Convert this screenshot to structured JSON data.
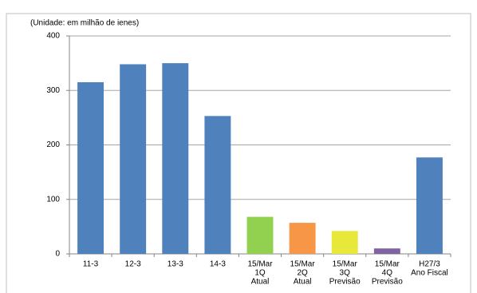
{
  "chart_data": {
    "type": "bar",
    "y_label": "(Unidade: em milhão de ienes)",
    "categories": [
      [
        "11-3"
      ],
      [
        "12-3"
      ],
      [
        "13-3"
      ],
      [
        "14-3"
      ],
      [
        "15/Mar",
        "1Q",
        "Atual"
      ],
      [
        "15/Mar",
        "2Q",
        "Atual"
      ],
      [
        "15/Mar",
        "3Q",
        "Previsão"
      ],
      [
        "15/Mar",
        "4Q",
        "Previsão"
      ],
      [
        "H27/3",
        "Ano Fiscal"
      ]
    ],
    "values": [
      315,
      348,
      350,
      253,
      68,
      57,
      42,
      10,
      177
    ],
    "colors": [
      "#4f81bd",
      "#4f81bd",
      "#4f81bd",
      "#4f81bd",
      "#92d050",
      "#f79646",
      "#e8e83a",
      "#8064a2",
      "#4f81bd"
    ],
    "ylim": [
      0,
      400
    ],
    "yticks": [
      0,
      100,
      200,
      300,
      400
    ],
    "grid": true
  }
}
